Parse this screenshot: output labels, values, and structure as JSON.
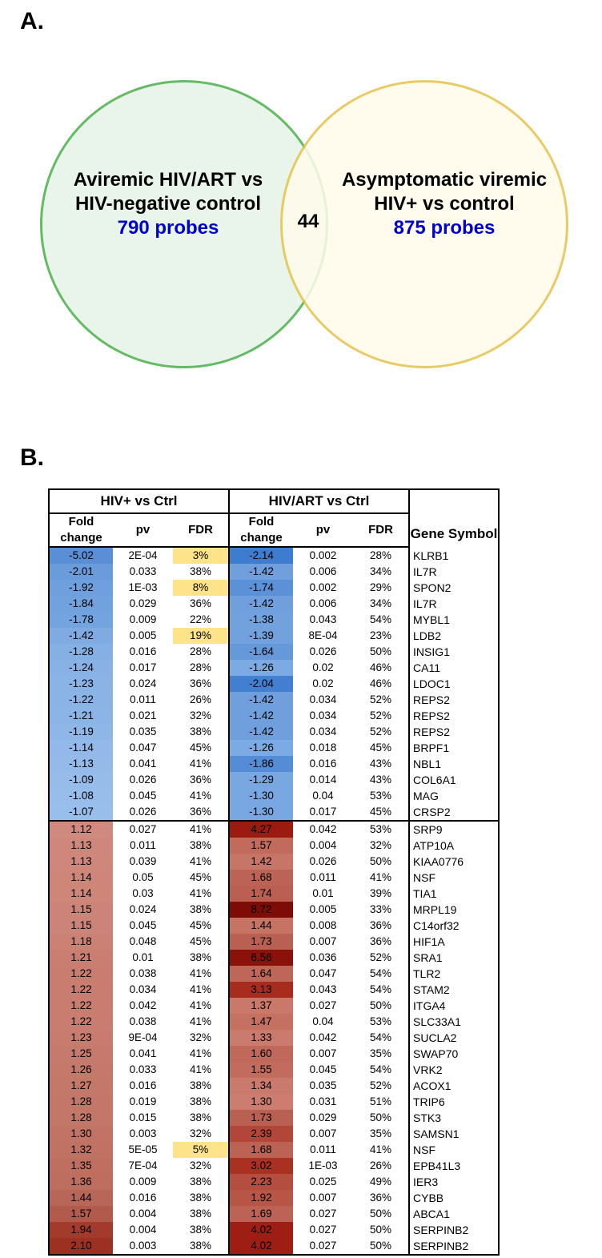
{
  "panel_a_label": "A.",
  "panel_b_label": "B.",
  "venn": {
    "left_title": "Aviremic HIV/ART vs HIV-negative control",
    "left_probes": "790 probes",
    "right_title": "Asymptomatic viremic HIV+ vs control",
    "right_probes": "875 probes",
    "overlap": "44",
    "left_circle_fill": "#e8f5e9",
    "left_circle_border": "#5cb85c",
    "right_circle_fill": "#fffcec",
    "right_circle_border": "#e6c34c"
  },
  "table": {
    "group1_header": "HIV+ vs Ctrl",
    "group2_header": "HIV/ART vs Ctrl",
    "fold_change_label": "Fold change",
    "pv_label": "pv",
    "fdr_label": "FDR",
    "gene_label": "Gene Symbol",
    "down_end_index": 16,
    "colors": {
      "fdr_highlight": "#ffe38a"
    },
    "rows": [
      {
        "fc1": "-5.02",
        "fc1c": "#5a8fd6",
        "pv1": "2E-04",
        "fdr1": "3%",
        "fdr1hl": true,
        "fc2": "-2.14",
        "fc2c": "#3d7ccf",
        "pv2": "0.002",
        "fdr2": "28%",
        "gene": "KLRB1"
      },
      {
        "fc1": "-2.01",
        "fc1c": "#6a9bdb",
        "pv1": "0.033",
        "fdr1": "38%",
        "fdr1hl": false,
        "fc2": "-1.42",
        "fc2c": "#6f9fdd",
        "pv2": "0.006",
        "fdr2": "34%",
        "gene": "IL7R"
      },
      {
        "fc1": "-1.92",
        "fc1c": "#6f9fdd",
        "pv1": "1E-03",
        "fdr1": "8%",
        "fdr1hl": true,
        "fc2": "-1.74",
        "fc2c": "#5a91d7",
        "pv2": "0.002",
        "fdr2": "29%",
        "gene": "SPON2"
      },
      {
        "fc1": "-1.84",
        "fc1c": "#72a2de",
        "pv1": "0.029",
        "fdr1": "36%",
        "fdr1hl": false,
        "fc2": "-1.42",
        "fc2c": "#6f9fdd",
        "pv2": "0.006",
        "fdr2": "34%",
        "gene": "IL7R"
      },
      {
        "fc1": "-1.78",
        "fc1c": "#74a4df",
        "pv1": "0.009",
        "fdr1": "22%",
        "fdr1hl": false,
        "fc2": "-1.38",
        "fc2c": "#72a2de",
        "pv2": "0.043",
        "fdr2": "54%",
        "gene": "MYBL1"
      },
      {
        "fc1": "-1.42",
        "fc1c": "#7fabe2",
        "pv1": "0.005",
        "fdr1": "19%",
        "fdr1hl": true,
        "fc2": "-1.39",
        "fc2c": "#72a2de",
        "pv2": "8E-04",
        "fdr2": "23%",
        "gene": "LDB2"
      },
      {
        "fc1": "-1.28",
        "fc1c": "#85b0e4",
        "pv1": "0.016",
        "fdr1": "28%",
        "fdr1hl": false,
        "fc2": "-1.64",
        "fc2c": "#6599da",
        "pv2": "0.026",
        "fdr2": "50%",
        "gene": "INSIG1"
      },
      {
        "fc1": "-1.24",
        "fc1c": "#88b2e5",
        "pv1": "0.017",
        "fdr1": "28%",
        "fdr1hl": false,
        "fc2": "-1.26",
        "fc2c": "#7caae2",
        "pv2": "0.02",
        "fdr2": "46%",
        "gene": "CA11"
      },
      {
        "fc1": "-1.23",
        "fc1c": "#8ab3e6",
        "pv1": "0.024",
        "fdr1": "36%",
        "fdr1hl": false,
        "fc2": "-2.04",
        "fc2c": "#427fd0",
        "pv2": "0.02",
        "fdr2": "46%",
        "gene": "LDOC1"
      },
      {
        "fc1": "-1.22",
        "fc1c": "#8bb4e6",
        "pv1": "0.011",
        "fdr1": "26%",
        "fdr1hl": false,
        "fc2": "-1.42",
        "fc2c": "#6f9fdd",
        "pv2": "0.034",
        "fdr2": "52%",
        "gene": "REPS2"
      },
      {
        "fc1": "-1.21",
        "fc1c": "#8cb5e7",
        "pv1": "0.021",
        "fdr1": "32%",
        "fdr1hl": false,
        "fc2": "-1.42",
        "fc2c": "#6f9fdd",
        "pv2": "0.034",
        "fdr2": "52%",
        "gene": "REPS2"
      },
      {
        "fc1": "-1.19",
        "fc1c": "#8eb6e7",
        "pv1": "0.035",
        "fdr1": "38%",
        "fdr1hl": false,
        "fc2": "-1.42",
        "fc2c": "#6f9fdd",
        "pv2": "0.034",
        "fdr2": "52%",
        "gene": "REPS2"
      },
      {
        "fc1": "-1.14",
        "fc1c": "#92b9e9",
        "pv1": "0.047",
        "fdr1": "45%",
        "fdr1hl": false,
        "fc2": "-1.26",
        "fc2c": "#7caae2",
        "pv2": "0.018",
        "fdr2": "45%",
        "gene": "BRPF1"
      },
      {
        "fc1": "-1.13",
        "fc1c": "#93bae9",
        "pv1": "0.041",
        "fdr1": "41%",
        "fdr1hl": false,
        "fc2": "-1.86",
        "fc2c": "#548cd5",
        "pv2": "0.016",
        "fdr2": "43%",
        "gene": "NBL1"
      },
      {
        "fc1": "-1.09",
        "fc1c": "#96bcea",
        "pv1": "0.026",
        "fdr1": "36%",
        "fdr1hl": false,
        "fc2": "-1.29",
        "fc2c": "#79a8e1",
        "pv2": "0.014",
        "fdr2": "43%",
        "gene": "COL6A1"
      },
      {
        "fc1": "-1.08",
        "fc1c": "#97bdeb",
        "pv1": "0.045",
        "fdr1": "41%",
        "fdr1hl": false,
        "fc2": "-1.30",
        "fc2c": "#78a7e1",
        "pv2": "0.04",
        "fdr2": "53%",
        "gene": "MAG"
      },
      {
        "fc1": "-1.07",
        "fc1c": "#98beeb",
        "pv1": "0.026",
        "fdr1": "36%",
        "fdr1hl": false,
        "fc2": "-1.30",
        "fc2c": "#78a7e1",
        "pv2": "0.017",
        "fdr2": "45%",
        "gene": "CRSP2"
      },
      {
        "fc1": "1.12",
        "fc1c": "#d0897d",
        "pv1": "0.027",
        "fdr1": "41%",
        "fdr1hl": false,
        "fc2": "4.27",
        "fc2c": "#9c1b10",
        "pv2": "0.042",
        "fdr2": "53%",
        "gene": "SRP9"
      },
      {
        "fc1": "1.13",
        "fc1c": "#cf877b",
        "pv1": "0.011",
        "fdr1": "38%",
        "fdr1hl": false,
        "fc2": "1.57",
        "fc2c": "#c16b5d",
        "pv2": "0.004",
        "fdr2": "32%",
        "gene": "ATP10A"
      },
      {
        "fc1": "1.13",
        "fc1c": "#cf877b",
        "pv1": "0.039",
        "fdr1": "41%",
        "fdr1hl": false,
        "fc2": "1.42",
        "fc2c": "#c77566",
        "pv2": "0.026",
        "fdr2": "50%",
        "gene": "KIAA0776"
      },
      {
        "fc1": "1.14",
        "fc1c": "#ce8679",
        "pv1": "0.05",
        "fdr1": "45%",
        "fdr1hl": false,
        "fc2": "1.68",
        "fc2c": "#bc6355",
        "pv2": "0.011",
        "fdr2": "41%",
        "gene": "NSF"
      },
      {
        "fc1": "1.14",
        "fc1c": "#ce8679",
        "pv1": "0.03",
        "fdr1": "41%",
        "fdr1hl": false,
        "fc2": "1.74",
        "fc2c": "#ba5f51",
        "pv2": "0.01",
        "fdr2": "39%",
        "gene": "TIA1"
      },
      {
        "fc1": "1.15",
        "fc1c": "#cd8478",
        "pv1": "0.024",
        "fdr1": "38%",
        "fdr1hl": false,
        "fc2": "8.72",
        "fc2c": "#7e0c06",
        "pv2": "0.005",
        "fdr2": "33%",
        "gene": "MRPL19"
      },
      {
        "fc1": "1.15",
        "fc1c": "#cd8478",
        "pv1": "0.045",
        "fdr1": "45%",
        "fdr1hl": false,
        "fc2": "1.44",
        "fc2c": "#c67364",
        "pv2": "0.008",
        "fdr2": "36%",
        "gene": "C14orf32"
      },
      {
        "fc1": "1.18",
        "fc1c": "#cb8174",
        "pv1": "0.048",
        "fdr1": "45%",
        "fdr1hl": false,
        "fc2": "1.73",
        "fc2c": "#ba6052",
        "pv2": "0.007",
        "fdr2": "36%",
        "gene": "HIF1A"
      },
      {
        "fc1": "1.21",
        "fc1c": "#c97e71",
        "pv1": "0.01",
        "fdr1": "38%",
        "fdr1hl": false,
        "fc2": "6.56",
        "fc2c": "#8a120a",
        "pv2": "0.036",
        "fdr2": "52%",
        "gene": "SRA1"
      },
      {
        "fc1": "1.22",
        "fc1c": "#c87d70",
        "pv1": "0.038",
        "fdr1": "41%",
        "fdr1hl": false,
        "fc2": "1.64",
        "fc2c": "#be6658",
        "pv2": "0.047",
        "fdr2": "54%",
        "gene": "TLR2"
      },
      {
        "fc1": "1.22",
        "fc1c": "#c87d70",
        "pv1": "0.034",
        "fdr1": "41%",
        "fdr1hl": false,
        "fc2": "3.13",
        "fc2c": "#a82c1e",
        "pv2": "0.043",
        "fdr2": "54%",
        "gene": "STAM2"
      },
      {
        "fc1": "1.22",
        "fc1c": "#c87d70",
        "pv1": "0.042",
        "fdr1": "41%",
        "fdr1hl": false,
        "fc2": "1.37",
        "fc2c": "#c9786a",
        "pv2": "0.027",
        "fdr2": "50%",
        "gene": "ITGA4"
      },
      {
        "fc1": "1.22",
        "fc1c": "#c87d70",
        "pv1": "0.038",
        "fdr1": "41%",
        "fdr1hl": false,
        "fc2": "1.47",
        "fc2c": "#c57162",
        "pv2": "0.04",
        "fdr2": "53%",
        "gene": "SLC33A1"
      },
      {
        "fc1": "1.23",
        "fc1c": "#c77c6f",
        "pv1": "9E-04",
        "fdr1": "32%",
        "fdr1hl": false,
        "fc2": "1.33",
        "fc2c": "#cb7b6d",
        "pv2": "0.042",
        "fdr2": "54%",
        "gene": "SUCLA2"
      },
      {
        "fc1": "1.25",
        "fc1c": "#c67a6d",
        "pv1": "0.041",
        "fdr1": "41%",
        "fdr1hl": false,
        "fc2": "1.60",
        "fc2c": "#c0695b",
        "pv2": "0.007",
        "fdr2": "35%",
        "gene": "SWAP70"
      },
      {
        "fc1": "1.26",
        "fc1c": "#c5796b",
        "pv1": "0.033",
        "fdr1": "41%",
        "fdr1hl": false,
        "fc2": "1.55",
        "fc2c": "#c26c5e",
        "pv2": "0.045",
        "fdr2": "54%",
        "gene": "VRK2"
      },
      {
        "fc1": "1.27",
        "fc1c": "#c4786a",
        "pv1": "0.016",
        "fdr1": "38%",
        "fdr1hl": false,
        "fc2": "1.34",
        "fc2c": "#ca7a6c",
        "pv2": "0.035",
        "fdr2": "52%",
        "gene": "ACOX1"
      },
      {
        "fc1": "1.28",
        "fc1c": "#c37769",
        "pv1": "0.019",
        "fdr1": "38%",
        "fdr1hl": false,
        "fc2": "1.30",
        "fc2c": "#cc7d6f",
        "pv2": "0.031",
        "fdr2": "51%",
        "gene": "TRIP6"
      },
      {
        "fc1": "1.28",
        "fc1c": "#c37769",
        "pv1": "0.015",
        "fdr1": "38%",
        "fdr1hl": false,
        "fc2": "1.73",
        "fc2c": "#ba6052",
        "pv2": "0.029",
        "fdr2": "50%",
        "gene": "STK3"
      },
      {
        "fc1": "1.30",
        "fc1c": "#c17466",
        "pv1": "0.003",
        "fdr1": "32%",
        "fdr1hl": false,
        "fc2": "2.39",
        "fc2c": "#b24739",
        "pv2": "0.007",
        "fdr2": "35%",
        "gene": "SAMSN1"
      },
      {
        "fc1": "1.32",
        "fc1c": "#c07263",
        "pv1": "5E-05",
        "fdr1": "5%",
        "fdr1hl": true,
        "fc2": "1.68",
        "fc2c": "#bc6355",
        "pv2": "0.011",
        "fdr2": "41%",
        "gene": "NSF"
      },
      {
        "fc1": "1.35",
        "fc1c": "#be6f60",
        "pv1": "7E-04",
        "fdr1": "32%",
        "fdr1hl": false,
        "fc2": "3.02",
        "fc2c": "#aa3022",
        "pv2": "1E-03",
        "fdr2": "26%",
        "gene": "EPB41L3"
      },
      {
        "fc1": "1.36",
        "fc1c": "#bd6e5f",
        "pv1": "0.009",
        "fdr1": "38%",
        "fdr1hl": false,
        "fc2": "2.23",
        "fc2c": "#b44e40",
        "pv2": "0.025",
        "fdr2": "49%",
        "gene": "IER3"
      },
      {
        "fc1": "1.44",
        "fc1c": "#b86657",
        "pv1": "0.016",
        "fdr1": "38%",
        "fdr1hl": false,
        "fc2": "1.92",
        "fc2c": "#b75647",
        "pv2": "0.007",
        "fdr2": "36%",
        "gene": "CYBB"
      },
      {
        "fc1": "1.57",
        "fc1c": "#b25a4b",
        "pv1": "0.004",
        "fdr1": "38%",
        "fdr1hl": false,
        "fc2": "1.69",
        "fc2c": "#bc6355",
        "pv2": "0.027",
        "fdr2": "50%",
        "gene": "ABCA1"
      },
      {
        "fc1": "1.94",
        "fc1c": "#a33b2c",
        "pv1": "0.004",
        "fdr1": "38%",
        "fdr1hl": false,
        "fc2": "4.02",
        "fc2c": "#9e1e13",
        "pv2": "0.027",
        "fdr2": "50%",
        "gene": "SERPINB2"
      },
      {
        "fc1": "2.10",
        "fc1c": "#9c3021",
        "pv1": "0.003",
        "fdr1": "38%",
        "fdr1hl": false,
        "fc2": "4.02",
        "fc2c": "#9e1e13",
        "pv2": "0.027",
        "fdr2": "50%",
        "gene": "SERPINB2"
      }
    ]
  }
}
